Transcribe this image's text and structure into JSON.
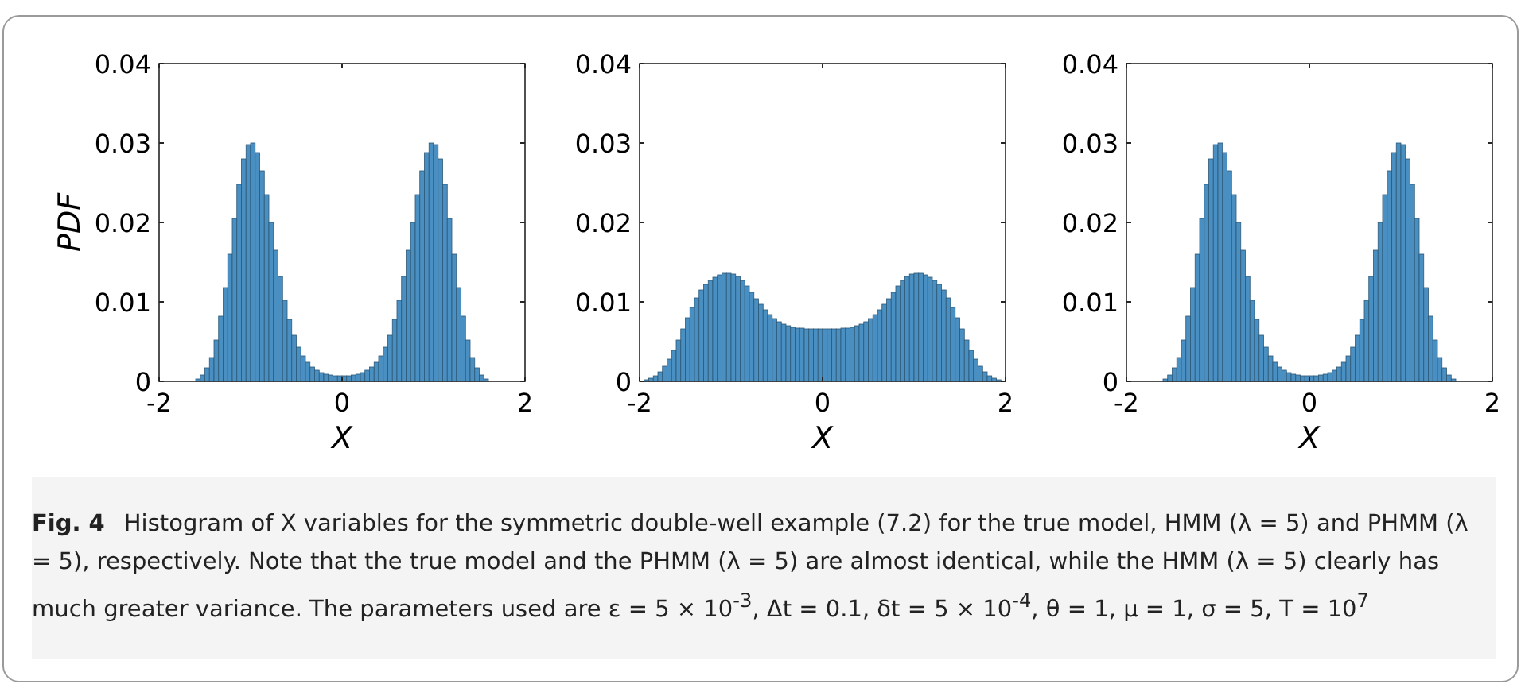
{
  "chart_data": [
    {
      "type": "histogram",
      "ylabel": "PDF",
      "xlabel": "X",
      "xlim": [
        -2,
        2
      ],
      "xticks": [
        -2,
        0,
        2
      ],
      "ylim": [
        0,
        0.04
      ],
      "yticks": [
        0,
        0.01,
        0.02,
        0.03,
        0.04
      ],
      "grid": false,
      "color": "#4a8fc2",
      "bins": [
        -2,
        -1.95,
        -1.9,
        -1.85,
        -1.8,
        -1.75,
        -1.7,
        -1.65,
        -1.6,
        -1.55,
        -1.5,
        -1.45,
        -1.4,
        -1.35,
        -1.3,
        -1.25,
        -1.2,
        -1.15,
        -1.1,
        -1.05,
        -1,
        -0.95,
        -0.9,
        -0.85,
        -0.8,
        -0.75,
        -0.7,
        -0.65,
        -0.6,
        -0.55,
        -0.5,
        -0.45,
        -0.4,
        -0.35,
        -0.3,
        -0.25,
        -0.2,
        -0.15,
        -0.1,
        -0.05,
        0,
        0.05,
        0.1,
        0.15,
        0.2,
        0.25,
        0.3,
        0.35,
        0.4,
        0.45,
        0.5,
        0.55,
        0.6,
        0.65,
        0.7,
        0.75,
        0.8,
        0.85,
        0.9,
        0.95,
        1,
        1.05,
        1.1,
        1.15,
        1.2,
        1.25,
        1.3,
        1.35,
        1.4,
        1.45,
        1.5,
        1.55,
        1.6,
        1.65,
        1.7,
        1.75,
        1.8,
        1.85,
        1.9,
        1.95,
        2
      ],
      "values": [
        0,
        0,
        0,
        0,
        0,
        0,
        0,
        0,
        0.0003,
        0.0008,
        0.0017,
        0.003,
        0.0052,
        0.0082,
        0.0118,
        0.016,
        0.0205,
        0.0248,
        0.028,
        0.0298,
        0.03,
        0.0288,
        0.0265,
        0.0235,
        0.02,
        0.0165,
        0.0132,
        0.0102,
        0.0078,
        0.0058,
        0.0043,
        0.0032,
        0.0024,
        0.0018,
        0.0014,
        0.0011,
        0.0009,
        0.0008,
        0.0007,
        0.0007,
        0.0007,
        0.0007,
        0.0008,
        0.0009,
        0.0011,
        0.0014,
        0.0018,
        0.0024,
        0.0032,
        0.0043,
        0.0058,
        0.0078,
        0.0102,
        0.0132,
        0.0165,
        0.02,
        0.0235,
        0.0265,
        0.0288,
        0.03,
        0.0298,
        0.028,
        0.0248,
        0.0205,
        0.016,
        0.0118,
        0.0082,
        0.0052,
        0.003,
        0.0017,
        0.0008,
        0.0003,
        0,
        0,
        0,
        0,
        0,
        0,
        0,
        0
      ],
      "annotations": [
        "Fig. 4",
        "Histogram of X variables for the symmetric double-well example (7.2) for the true model, HMM (λ = 5) and PHMM (λ = 5), respectively. Note that the true model and the PHMM (λ = 5) are almost identical, while the HMM (λ = 5) clearly has much greater variance. The parameters used are ε = 5 × 10$^{-3}$, Δt = 0.1, δt = 5 × 10$^{-4}$, θ = 1, μ = 1, σ = 5, T = 10$^{7}$"
      ]
    },
    {
      "type": "histogram",
      "xlabel": "X",
      "xlim": [
        -2,
        2
      ],
      "xticks": [
        -2,
        0,
        2
      ],
      "ylim": [
        0,
        0.04
      ],
      "yticks": [
        0,
        0.01,
        0.02,
        0.03,
        0.04
      ],
      "grid": false,
      "color": "#4a8fc2",
      "bins": [
        -2,
        -1.95,
        -1.9,
        -1.85,
        -1.8,
        -1.75,
        -1.7,
        -1.65,
        -1.6,
        -1.55,
        -1.5,
        -1.45,
        -1.4,
        -1.35,
        -1.3,
        -1.25,
        -1.2,
        -1.15,
        -1.1,
        -1.05,
        -1,
        -0.95,
        -0.9,
        -0.85,
        -0.8,
        -0.75,
        -0.7,
        -0.65,
        -0.6,
        -0.55,
        -0.5,
        -0.45,
        -0.4,
        -0.35,
        -0.3,
        -0.25,
        -0.2,
        -0.15,
        -0.1,
        -0.05,
        0,
        0.05,
        0.1,
        0.15,
        0.2,
        0.25,
        0.3,
        0.35,
        0.4,
        0.45,
        0.5,
        0.55,
        0.6,
        0.65,
        0.7,
        0.75,
        0.8,
        0.85,
        0.9,
        0.95,
        1,
        1.05,
        1.1,
        1.15,
        1.2,
        1.25,
        1.3,
        1.35,
        1.4,
        1.45,
        1.5,
        1.55,
        1.6,
        1.65,
        1.7,
        1.75,
        1.8,
        1.85,
        1.9,
        1.95,
        2
      ],
      "values": [
        0,
        0.0002,
        0.0004,
        0.0007,
        0.0012,
        0.0019,
        0.0028,
        0.0039,
        0.0052,
        0.0066,
        0.008,
        0.0093,
        0.0105,
        0.0115,
        0.0122,
        0.0127,
        0.0131,
        0.0134,
        0.0136,
        0.0136,
        0.0135,
        0.0132,
        0.0127,
        0.012,
        0.0112,
        0.0104,
        0.0097,
        0.009,
        0.0084,
        0.0079,
        0.0075,
        0.0072,
        0.007,
        0.0068,
        0.0067,
        0.0067,
        0.0066,
        0.0066,
        0.0066,
        0.0066,
        0.0066,
        0.0066,
        0.0066,
        0.0066,
        0.0067,
        0.0067,
        0.0068,
        0.007,
        0.0072,
        0.0075,
        0.0079,
        0.0084,
        0.009,
        0.0097,
        0.0104,
        0.0112,
        0.012,
        0.0127,
        0.0132,
        0.0135,
        0.0136,
        0.0136,
        0.0134,
        0.0131,
        0.0127,
        0.0122,
        0.0115,
        0.0105,
        0.0093,
        0.008,
        0.0066,
        0.0052,
        0.0039,
        0.0028,
        0.0019,
        0.0012,
        0.0007,
        0.0004,
        0.0002,
        0
      ]
    },
    {
      "type": "histogram",
      "xlabel": "X",
      "xlim": [
        -2,
        2
      ],
      "xticks": [
        -2,
        0,
        2
      ],
      "ylim": [
        0,
        0.04
      ],
      "yticks": [
        0,
        0.01,
        0.02,
        0.03,
        0.04
      ],
      "grid": false,
      "color": "#4a8fc2",
      "bins": [
        -2,
        -1.95,
        -1.9,
        -1.85,
        -1.8,
        -1.75,
        -1.7,
        -1.65,
        -1.6,
        -1.55,
        -1.5,
        -1.45,
        -1.4,
        -1.35,
        -1.3,
        -1.25,
        -1.2,
        -1.15,
        -1.1,
        -1.05,
        -1,
        -0.95,
        -0.9,
        -0.85,
        -0.8,
        -0.75,
        -0.7,
        -0.65,
        -0.6,
        -0.55,
        -0.5,
        -0.45,
        -0.4,
        -0.35,
        -0.3,
        -0.25,
        -0.2,
        -0.15,
        -0.1,
        -0.05,
        0,
        0.05,
        0.1,
        0.15,
        0.2,
        0.25,
        0.3,
        0.35,
        0.4,
        0.45,
        0.5,
        0.55,
        0.6,
        0.65,
        0.7,
        0.75,
        0.8,
        0.85,
        0.9,
        0.95,
        1,
        1.05,
        1.1,
        1.15,
        1.2,
        1.25,
        1.3,
        1.35,
        1.4,
        1.45,
        1.5,
        1.55,
        1.6,
        1.65,
        1.7,
        1.75,
        1.8,
        1.85,
        1.9,
        1.95,
        2
      ],
      "values": [
        0,
        0,
        0,
        0,
        0,
        0,
        0,
        0,
        0.0003,
        0.0008,
        0.0017,
        0.003,
        0.0052,
        0.0082,
        0.0118,
        0.016,
        0.0205,
        0.0248,
        0.028,
        0.0298,
        0.03,
        0.0288,
        0.0265,
        0.0235,
        0.02,
        0.0165,
        0.0132,
        0.0102,
        0.0078,
        0.0058,
        0.0043,
        0.0032,
        0.0024,
        0.0018,
        0.0014,
        0.0011,
        0.0009,
        0.0008,
        0.0007,
        0.0007,
        0.0007,
        0.0007,
        0.0008,
        0.0009,
        0.0011,
        0.0014,
        0.0018,
        0.0024,
        0.0032,
        0.0043,
        0.0058,
        0.0078,
        0.0102,
        0.0132,
        0.0165,
        0.02,
        0.0235,
        0.0265,
        0.0288,
        0.03,
        0.0298,
        0.028,
        0.0248,
        0.0205,
        0.016,
        0.0118,
        0.0082,
        0.0052,
        0.003,
        0.0017,
        0.0008,
        0.0003,
        0,
        0,
        0,
        0,
        0,
        0,
        0,
        0
      ]
    }
  ]
}
